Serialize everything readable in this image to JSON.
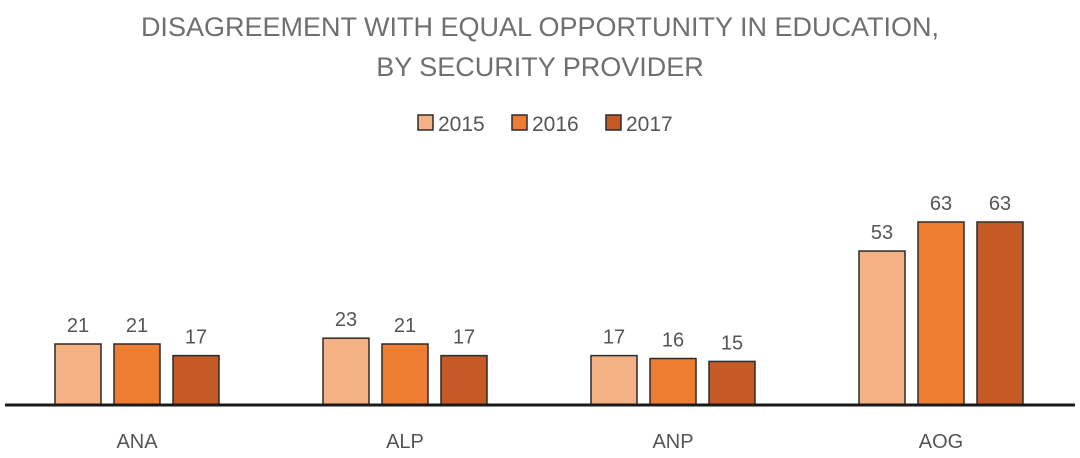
{
  "chart_data": {
    "type": "bar",
    "title_lines": [
      "DISAGREEMENT WITH EQUAL OPPORTUNITY IN EDUCATION,",
      "BY SECURITY PROVIDER"
    ],
    "xlabel": "",
    "ylabel": "",
    "categories": [
      "ANA",
      "ALP",
      "ANP",
      "AOG"
    ],
    "series": [
      {
        "name": "2015",
        "color": "#f4b183",
        "values": [
          21,
          23,
          17,
          53
        ]
      },
      {
        "name": "2016",
        "color": "#ed7d31",
        "values": [
          21,
          21,
          16,
          63
        ]
      },
      {
        "name": "2017",
        "color": "#c55a27",
        "values": [
          17,
          17,
          15,
          63
        ]
      }
    ],
    "ylim": [
      0,
      63
    ],
    "grid": false,
    "legend_position": "top-center",
    "data_labels": true
  }
}
